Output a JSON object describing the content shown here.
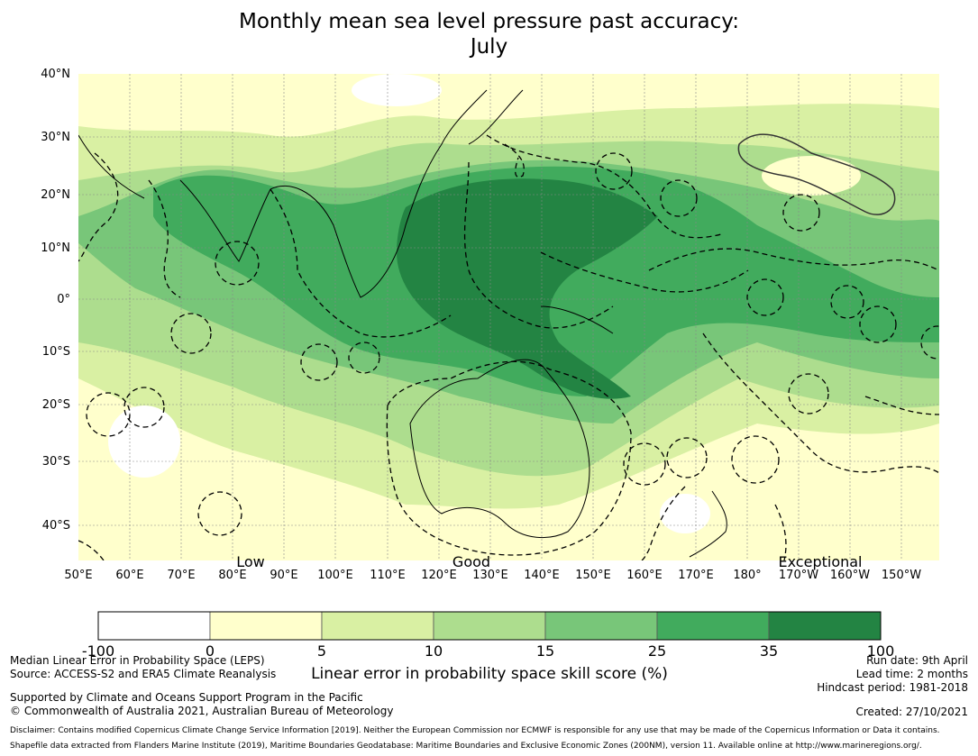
{
  "title_line1": "Monthly mean sea level pressure past accuracy:",
  "title_line2": "July",
  "lat_labels": [
    "40°N",
    "30°N",
    "20°N",
    "10°N",
    "0°",
    "10°S",
    "20°S",
    "30°S",
    "40°S"
  ],
  "lon_labels": [
    "50°E",
    "60°E",
    "70°E",
    "80°E",
    "90°E",
    "100°E",
    "110°E",
    "120°E",
    "130°E",
    "140°E",
    "150°E",
    "160°E",
    "170°E",
    "180°",
    "170°W",
    "160°W",
    "150°W"
  ],
  "categories": [
    "Low",
    "Good",
    "Exceptional"
  ],
  "colorbar": {
    "ticks": [
      "-100",
      "0",
      "5",
      "10",
      "15",
      "25",
      "35",
      "100"
    ],
    "colors": [
      "#ffffff",
      "#ffffcc",
      "#d9f0a3",
      "#addd8e",
      "#78c679",
      "#41ab5d",
      "#238443"
    ],
    "label": "Linear error in probability space skill score (%)"
  },
  "colors": {
    "level0": "#ffffff",
    "level1": "#ffffcc",
    "level2": "#d9f0a3",
    "level3": "#addd8e",
    "level4": "#78c679",
    "level5": "#41ab5d",
    "level6": "#238443"
  },
  "footer": {
    "left1": "Median Linear Error in Probability Space (LEPS)",
    "left2": "Source: ACCESS-S2 and ERA5 Climate Reanalysis",
    "left3": "Supported by Climate and Oceans Support Program in the Pacific",
    "left4": "© Commonwealth of Australia 2021, Australian Bureau of Meteorology",
    "right1": "Run date: 9th April",
    "right2": "Lead time: 2 months",
    "right3": "Hindcast period: 1981-2018",
    "created": "Created: 27/10/2021",
    "disclaimer": "Disclaimer: Contains modified Copernicus Climate Change Service Information [2019]. Neither the European Commission nor ECMWF is responsible for any use that may be made of the Copernicus Information or Data it contains.",
    "shapefile": "Shapefile data extracted from Flanders Marine Institute (2019), Maritime Boundaries Geodatabase: Maritime Boundaries and Exclusive Economic Zones (200NM), version 11. Available online at http://www.marineregions.org/."
  }
}
